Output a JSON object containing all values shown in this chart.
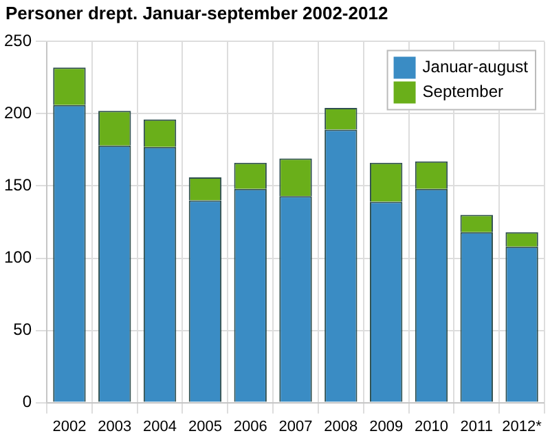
{
  "chart_data": {
    "type": "bar",
    "title": "Personer drept. Januar-september 2002-2012",
    "stacked": true,
    "categories": [
      "2002",
      "2003",
      "2004",
      "2005",
      "2006",
      "2007",
      "2008",
      "2009",
      "2010",
      "2011",
      "2012*"
    ],
    "series": [
      {
        "name": "Januar-august",
        "color": "#3a8cc4",
        "values": [
          206,
          178,
          177,
          140,
          148,
          143,
          189,
          139,
          148,
          118,
          108
        ]
      },
      {
        "name": "September",
        "color": "#6aaf1a",
        "values": [
          26,
          24,
          19,
          16,
          18,
          26,
          15,
          27,
          19,
          12,
          10
        ]
      }
    ],
    "ylim": [
      0,
      250
    ],
    "yticks": [
      0,
      50,
      100,
      150,
      200,
      250
    ],
    "grid": true,
    "legend": "top right"
  }
}
